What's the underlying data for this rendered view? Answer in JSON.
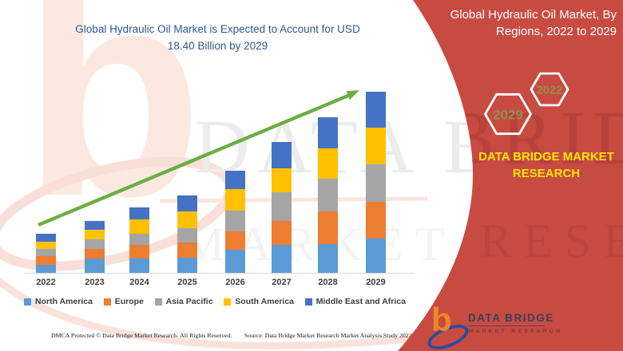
{
  "header": {
    "title_line1": "Global Hydraulic Oil Market is Expected to Account for USD",
    "title_line2": "18.40 Billion by 2029"
  },
  "panel": {
    "title_line1": "Global Hydraulic Oil Market, By",
    "title_line2": "Regions, 2022 to 2029",
    "hexagons": [
      {
        "label": "2029"
      },
      {
        "label": "2022"
      }
    ],
    "brand_line1": "DATA BRIDGE MARKET",
    "brand_line2": "RESEARCH",
    "colors": {
      "panel_red": "#C84B42",
      "brand_yellow": "#FFE600",
      "hexagon_text": "#8F9150",
      "hexagon_outline": "#FFFFFF",
      "title_text": "#FFFFFF"
    }
  },
  "chart_data": {
    "type": "bar",
    "stacked": true,
    "title": "Global Hydraulic Oil Market is Expected to Account for USD 18.40 Billion by 2029",
    "unit": "USD billion (estimated from bar heights; stated 2029 total = 18.40)",
    "categories": [
      "2022",
      "2023",
      "2024",
      "2025",
      "2026",
      "2027",
      "2028",
      "2029"
    ],
    "series": [
      {
        "name": "North America",
        "color": "#5B9BD5",
        "values": [
          0.91,
          1.53,
          1.53,
          1.61,
          2.4,
          2.93,
          3.01,
          3.55
        ]
      },
      {
        "name": "Europe",
        "color": "#ED7D31",
        "values": [
          0.89,
          0.99,
          1.35,
          1.53,
          1.91,
          2.36,
          3.28,
          3.71
        ]
      },
      {
        "name": "Asia Pacific",
        "color": "#A5A5A5",
        "values": [
          0.73,
          0.94,
          1.15,
          1.48,
          2.07,
          2.91,
          3.31,
          3.77
        ]
      },
      {
        "name": "South America",
        "color": "#FFC000",
        "values": [
          0.7,
          0.94,
          1.45,
          1.67,
          2.2,
          2.48,
          3.09,
          3.77
        ]
      },
      {
        "name": "Middle East and Africa",
        "color": "#4472C4",
        "values": [
          0.81,
          0.89,
          1.23,
          1.61,
          1.83,
          2.64,
          3.15,
          3.6
        ]
      }
    ],
    "totals": [
      4.04,
      5.29,
      6.71,
      7.9,
      10.41,
      13.32,
      15.84,
      18.4
    ],
    "trend_arrow": {
      "present": true,
      "color": "#6BAE44",
      "direction": "up-right"
    },
    "title_color": "#2E5693",
    "axis_text_color": "#3F3F3F",
    "y_axis_visible": false,
    "grid": false,
    "legend_position": "bottom"
  },
  "watermark": {
    "letter": "b",
    "line1": "DATA BRIDGE",
    "line2": "MARKET RESEARCH"
  },
  "footer": {
    "dmca": "DMCA Protected © Data Bridge Market Research- All Rights Reserved.",
    "source": "Source: Data Bridge Market Research Market Analysis Study 2022",
    "logo_glyph": "b",
    "logo_title": "DATA BRIDGE",
    "logo_subtitle": "MARKET RESEARCH"
  }
}
